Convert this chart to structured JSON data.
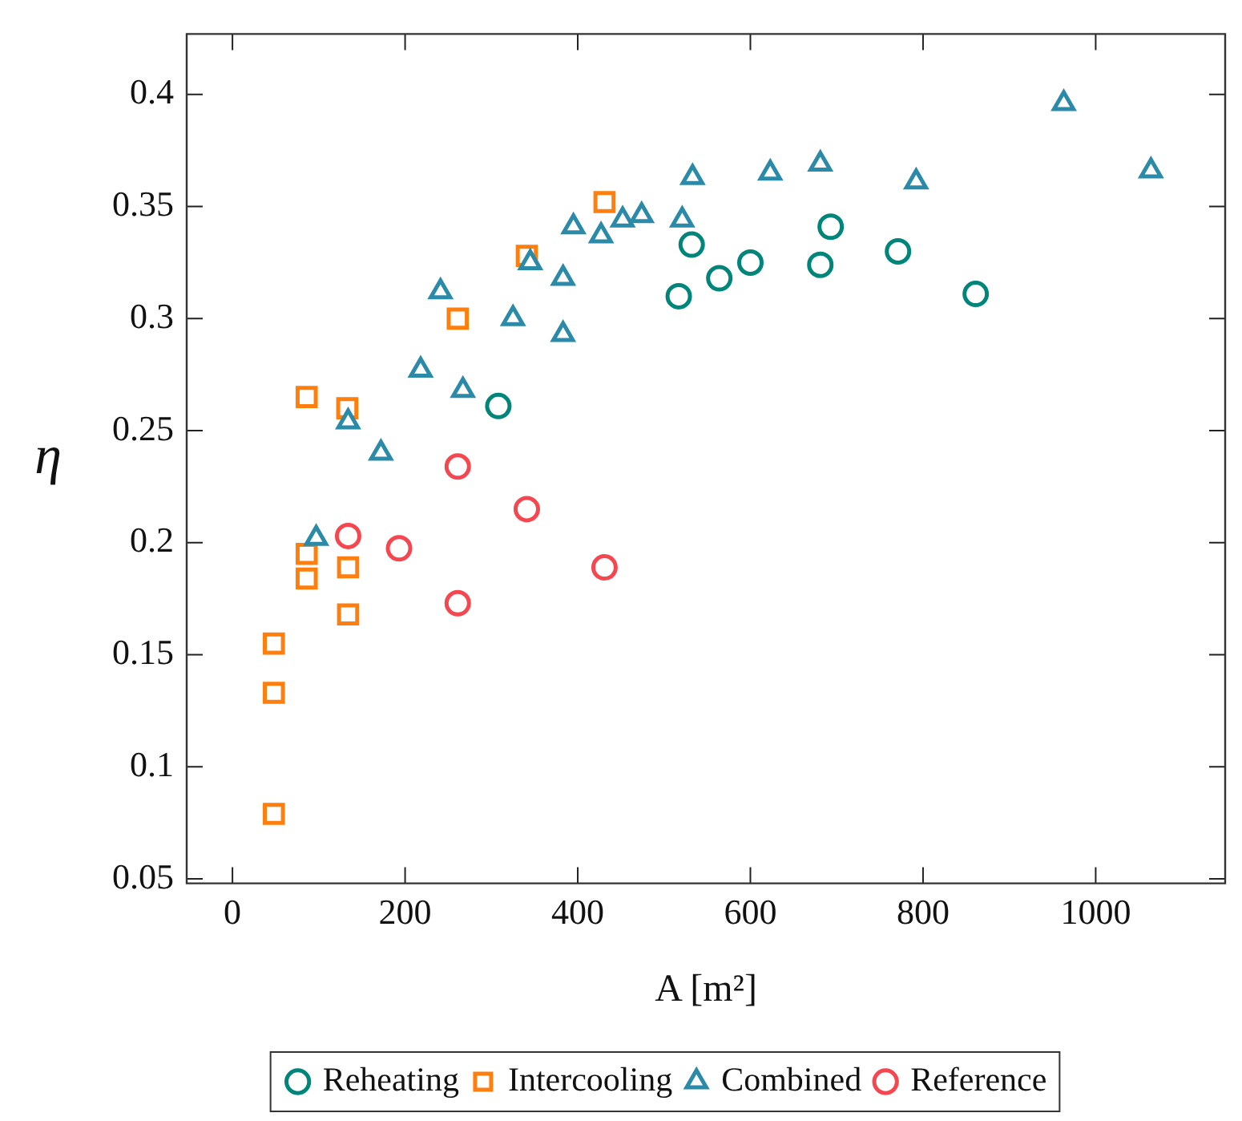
{
  "chart_data": {
    "type": "scatter",
    "xlabel": "A [m²]",
    "ylabel": "η",
    "xlim": [
      -53,
      1150
    ],
    "xticks": [
      0,
      200,
      400,
      600,
      800,
      1000
    ],
    "ylim": [
      0.048,
      0.427
    ],
    "yticks": [
      0.05,
      0.1,
      0.15,
      0.2,
      0.25,
      0.3,
      0.35,
      0.4
    ],
    "grid": false,
    "legend": "bottom",
    "series": [
      {
        "name": "Reheating",
        "color": "#00857a",
        "marker": "circle",
        "x": [
          308,
          517,
          532,
          564,
          600,
          681,
          693,
          771,
          861
        ],
        "values": [
          0.261,
          0.31,
          0.333,
          0.318,
          0.325,
          0.324,
          0.341,
          0.33,
          0.311
        ]
      },
      {
        "name": "Intercooling",
        "color": "#ff7f0e",
        "marker": "square",
        "x": [
          86,
          133,
          261,
          341,
          431,
          86,
          86,
          134,
          134,
          48,
          48,
          48
        ],
        "values": [
          0.265,
          0.26,
          0.3,
          0.328,
          0.352,
          0.195,
          0.184,
          0.189,
          0.168,
          0.155,
          0.133,
          0.079
        ]
      },
      {
        "name": "Combined",
        "color": "#2a8aa8",
        "marker": "triangle",
        "x": [
          97,
          134,
          172,
          218,
          241,
          267,
          325,
          345,
          383,
          383,
          395,
          427,
          452,
          474,
          521,
          533,
          623,
          681,
          792,
          963,
          1064
        ],
        "values": [
          0.202,
          0.254,
          0.24,
          0.277,
          0.312,
          0.268,
          0.3,
          0.325,
          0.318,
          0.293,
          0.341,
          0.337,
          0.344,
          0.346,
          0.344,
          0.363,
          0.365,
          0.369,
          0.361,
          0.396,
          0.366
        ]
      },
      {
        "name": "Reference",
        "color": "#f5474f",
        "marker": "circle",
        "x": [
          134,
          193,
          261,
          261,
          341,
          431
        ],
        "values": [
          0.203,
          0.1975,
          0.173,
          0.234,
          0.215,
          0.189
        ]
      }
    ]
  }
}
